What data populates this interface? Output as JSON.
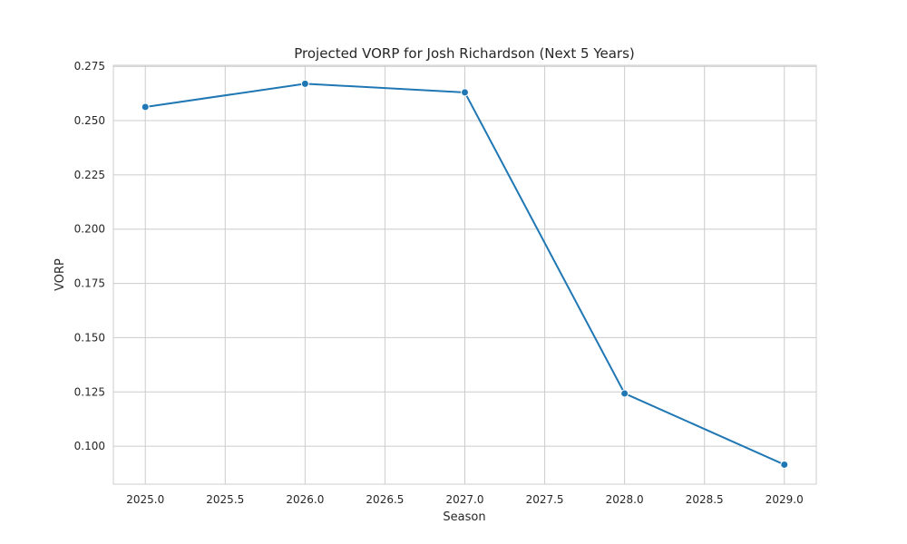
{
  "chart_data": {
    "type": "line",
    "title": "Projected VORP for Josh Richardson (Next 5 Years)",
    "xlabel": "Season",
    "ylabel": "VORP",
    "x": [
      2025.0,
      2026.0,
      2027.0,
      2028.0,
      2029.0
    ],
    "series": [
      {
        "values": [
          0.2563,
          0.267,
          0.263,
          0.1243,
          0.0915
        ],
        "color": "#1f77b4",
        "marker": "circle"
      }
    ],
    "xlim": [
      2024.8,
      2029.2
    ],
    "ylim": [
      0.0825,
      0.2755
    ],
    "xticks": [
      2025.0,
      2025.5,
      2026.0,
      2026.5,
      2027.0,
      2027.5,
      2028.0,
      2028.5,
      2029.0
    ],
    "xtick_labels": [
      "2025.0",
      "2025.5",
      "2026.0",
      "2026.5",
      "2027.0",
      "2027.5",
      "2028.0",
      "2028.5",
      "2029.0"
    ],
    "yticks": [
      0.1,
      0.125,
      0.15,
      0.175,
      0.2,
      0.225,
      0.25,
      0.275
    ],
    "ytick_labels": [
      "0.100",
      "0.125",
      "0.150",
      "0.175",
      "0.200",
      "0.225",
      "0.250",
      "0.275"
    ],
    "grid": true,
    "legend": false,
    "colors": {
      "line": "#1f77b4",
      "grid": "#cccccc",
      "frame": "#cccccc",
      "text": "#262626",
      "background": "#ffffff"
    }
  }
}
